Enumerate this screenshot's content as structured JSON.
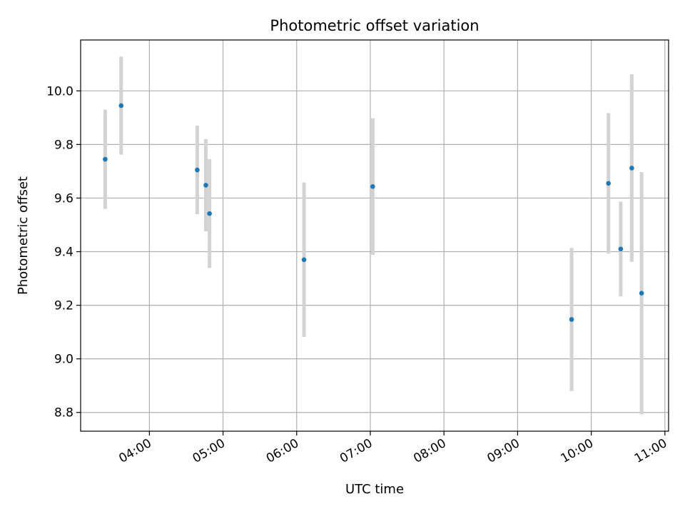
{
  "chart_data": {
    "type": "scatter",
    "title": "Photometric offset variation",
    "xlabel": "UTC time",
    "ylabel": "Photometric offset",
    "xlim": [
      "03:04",
      "11:03"
    ],
    "ylim": [
      8.73,
      10.19
    ],
    "grid": true,
    "x_ticks": [
      "04:00",
      "05:00",
      "06:00",
      "07:00",
      "08:00",
      "09:00",
      "10:00",
      "11:00"
    ],
    "y_ticks": [
      "8.8",
      "9.0",
      "9.2",
      "9.4",
      "9.6",
      "9.8",
      "10.0"
    ],
    "colors": {
      "point": "#1f77b4",
      "errorbar": "#d3d3d3",
      "grid": "#b0b0b0"
    },
    "points": [
      {
        "x": "03:24",
        "y": 9.745,
        "err": 0.185
      },
      {
        "x": "03:37",
        "y": 9.945,
        "err": 0.183
      },
      {
        "x": "04:39",
        "y": 9.705,
        "err": 0.165
      },
      {
        "x": "04:46",
        "y": 9.648,
        "err": 0.172
      },
      {
        "x": "04:49",
        "y": 9.542,
        "err": 0.203
      },
      {
        "x": "06:06",
        "y": 9.37,
        "err": 0.288
      },
      {
        "x": "07:02",
        "y": 9.643,
        "err": 0.255
      },
      {
        "x": "09:44",
        "y": 9.147,
        "err": 0.267
      },
      {
        "x": "10:14",
        "y": 9.655,
        "err": 0.262
      },
      {
        "x": "10:24",
        "y": 9.41,
        "err": 0.177
      },
      {
        "x": "10:33",
        "y": 9.712,
        "err": 0.35
      },
      {
        "x": "10:41",
        "y": 9.245,
        "err": 0.452
      }
    ]
  }
}
